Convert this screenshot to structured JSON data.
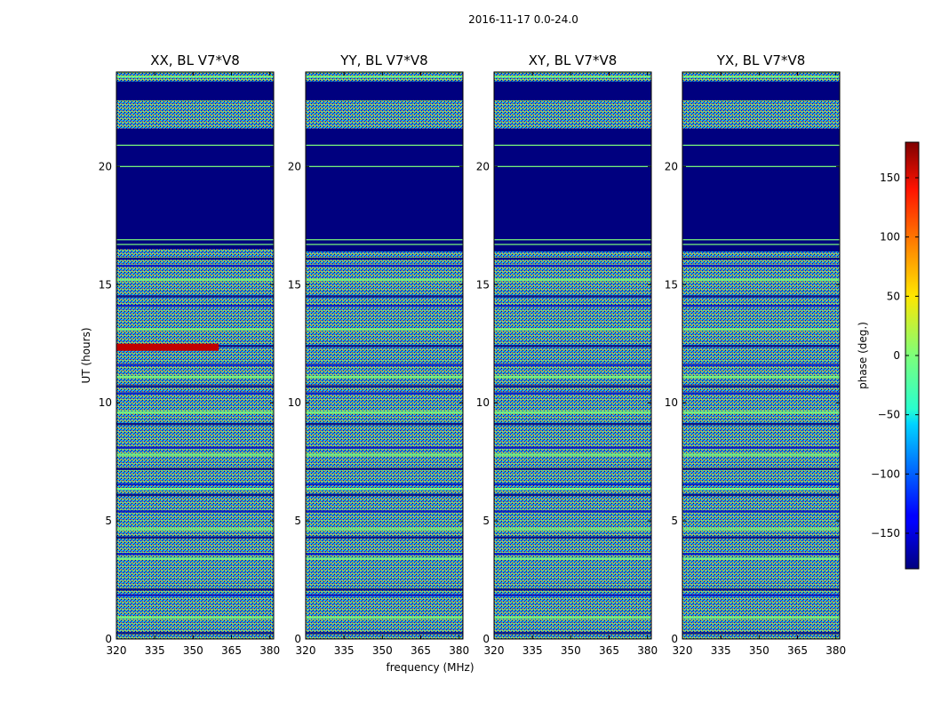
{
  "chart_data": {
    "type": "heatmap",
    "suptitle": "2016-11-17 0.0-24.0",
    "xlabel": "frequency (MHz)",
    "ylabel": "UT (hours)",
    "xlim": [
      320,
      381.5
    ],
    "ylim": [
      0,
      24
    ],
    "x_ticks": [
      "320",
      "335",
      "350",
      "365",
      "380"
    ],
    "x_tick_values": [
      320,
      335,
      350,
      365,
      380
    ],
    "y_ticks": [
      "0",
      "5",
      "10",
      "15",
      "20"
    ],
    "y_tick_values": [
      0,
      5,
      10,
      15,
      20
    ],
    "panels": [
      {
        "title": "XX, BL V7*V8",
        "flagged_hours": [
          [
            22.8,
            23.6
          ],
          [
            16.5,
            21.6
          ]
        ],
        "bright_band_hours": [
          [
            12.2,
            12.5
          ]
        ]
      },
      {
        "title": "YY, BL V7*V8",
        "flagged_hours": [
          [
            22.8,
            23.6
          ],
          [
            16.4,
            21.6
          ]
        ],
        "bright_band_hours": []
      },
      {
        "title": "XY, BL V7*V8",
        "flagged_hours": [
          [
            22.8,
            23.6
          ],
          [
            16.4,
            21.6
          ]
        ],
        "bright_band_hours": []
      },
      {
        "title": "YX, BL V7*V8",
        "flagged_hours": [
          [
            22.8,
            23.6
          ],
          [
            16.4,
            21.6
          ]
        ],
        "bright_band_hours": []
      }
    ],
    "colorbar": {
      "label": "phase (deg.)",
      "range": [
        -180,
        180
      ],
      "ticks": [
        "150",
        "100",
        "50",
        "0",
        "−50",
        "−100",
        "−150"
      ],
      "tick_values": [
        150,
        100,
        50,
        0,
        -50,
        -100,
        -150
      ],
      "colormap": "jet"
    }
  }
}
